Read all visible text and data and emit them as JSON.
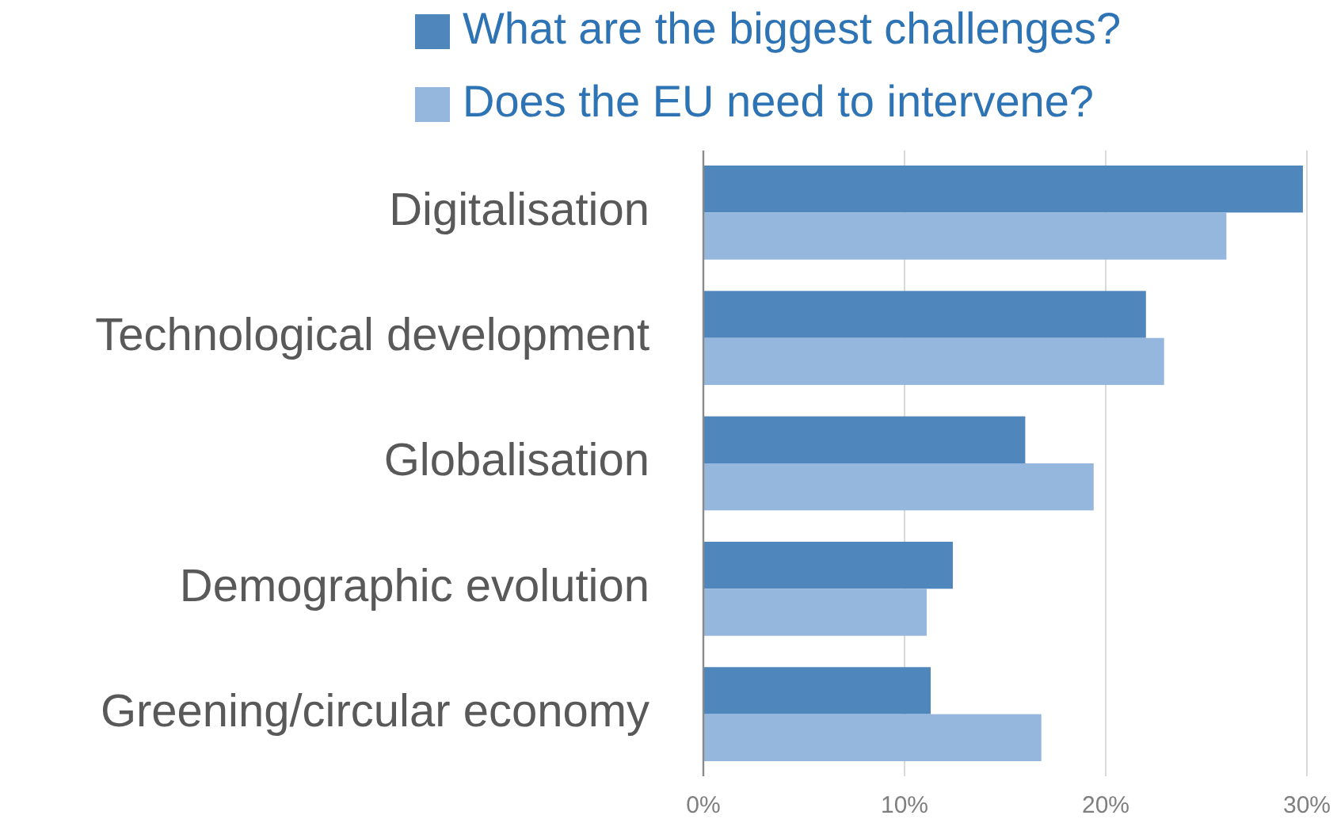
{
  "chart_data": {
    "type": "bar",
    "orientation": "horizontal",
    "categories": [
      "Digitalisation",
      "Technological development",
      "Globalisation",
      "Demographic evolution",
      "Greening/circular economy"
    ],
    "series": [
      {
        "name": "What are the biggest challenges?",
        "color": "#4f86bc",
        "values": [
          29.8,
          22.0,
          16.0,
          12.4,
          11.3
        ]
      },
      {
        "name": "Does the EU need to intervene?",
        "color": "#95b7de",
        "values": [
          26.0,
          22.9,
          19.4,
          11.1,
          16.8
        ]
      }
    ],
    "xlim": [
      0,
      30
    ],
    "xticks": [
      {
        "value": 0,
        "label": "0%"
      },
      {
        "value": 10,
        "label": "10%"
      },
      {
        "value": 20,
        "label": "20%"
      },
      {
        "value": 30,
        "label": "30%"
      }
    ],
    "grid": "x",
    "legend": "top"
  }
}
